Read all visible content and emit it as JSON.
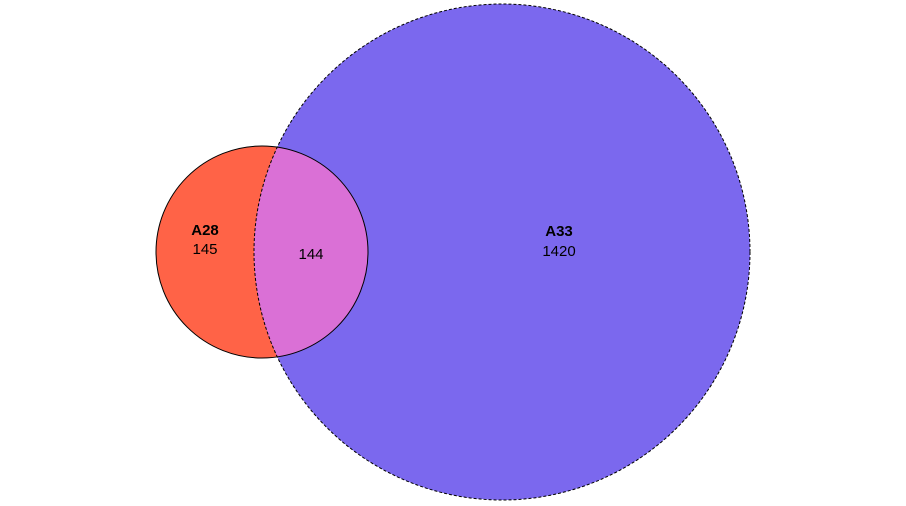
{
  "venn": {
    "sets": [
      {
        "name": "A28",
        "only_count": "145",
        "color": "#FF6347",
        "outline": "solid"
      },
      {
        "name": "A33",
        "only_count": "1420",
        "color": "#7B68EE",
        "outline": "dashed"
      }
    ],
    "intersection": {
      "count": "144",
      "color": "#DA70D6"
    }
  }
}
